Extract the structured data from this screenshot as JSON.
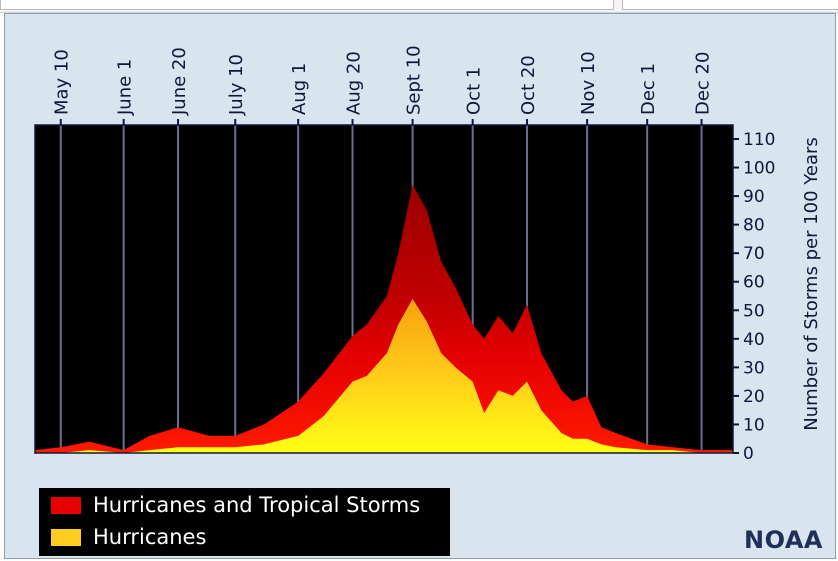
{
  "chart_data": {
    "type": "area",
    "title": "",
    "xlabel": "",
    "ylabel": "Number of Storms per 100 Years",
    "ylim": [
      0,
      110
    ],
    "yticks": [
      0,
      10,
      20,
      30,
      40,
      50,
      60,
      70,
      80,
      90,
      100,
      110
    ],
    "xlim": [
      "May 1",
      "Dec 31"
    ],
    "x_ticks": [
      "May 10",
      "June 1",
      "June 20",
      "July 10",
      "Aug 1",
      "Aug 20",
      "Sept 10",
      "Oct 1",
      "Oct 20",
      "Nov 10",
      "Dec 1",
      "Dec 20"
    ],
    "grid": "vertical lines at each date tick",
    "legend_placement": "below-left",
    "colors": {
      "background": "#000000",
      "storms": "#e60000",
      "storms_peak": "#9a0000",
      "hurricanes": "#ffd21e",
      "hurricanes_peak": "#f7a20c",
      "gridline": "#6a6f97",
      "panel": "#d8e4ee"
    },
    "x": [
      "May 1",
      "May 10",
      "May 20",
      "June 1",
      "June 10",
      "June 20",
      "July 1",
      "July 10",
      "July 20",
      "Aug 1",
      "Aug 10",
      "Aug 20",
      "Aug 25",
      "Sept 1",
      "Sept 5",
      "Sept 10",
      "Sept 15",
      "Sept 20",
      "Sept 25",
      "Oct 1",
      "Oct 5",
      "Oct 10",
      "Oct 15",
      "Oct 20",
      "Oct 25",
      "Nov 1",
      "Nov 5",
      "Nov 10",
      "Nov 15",
      "Nov 20",
      "Dec 1",
      "Dec 10",
      "Dec 20",
      "Dec 31"
    ],
    "series": [
      {
        "name": "Hurricanes and Tropical Storms",
        "values": [
          1,
          2,
          4,
          1,
          6,
          9,
          6,
          6,
          10,
          18,
          28,
          41,
          45,
          55,
          70,
          94,
          85,
          67,
          58,
          45,
          40,
          48,
          42,
          52,
          35,
          22,
          18,
          20,
          9,
          7,
          3,
          2,
          1,
          1
        ]
      },
      {
        "name": "Hurricanes",
        "values": [
          0,
          0,
          1,
          0,
          1,
          2,
          2,
          2,
          3,
          6,
          13,
          25,
          27,
          35,
          45,
          54,
          46,
          35,
          30,
          25,
          14,
          22,
          20,
          25,
          15,
          7,
          5,
          5,
          3,
          2,
          1,
          1,
          0,
          0
        ]
      }
    ]
  },
  "credit": "NOAA"
}
